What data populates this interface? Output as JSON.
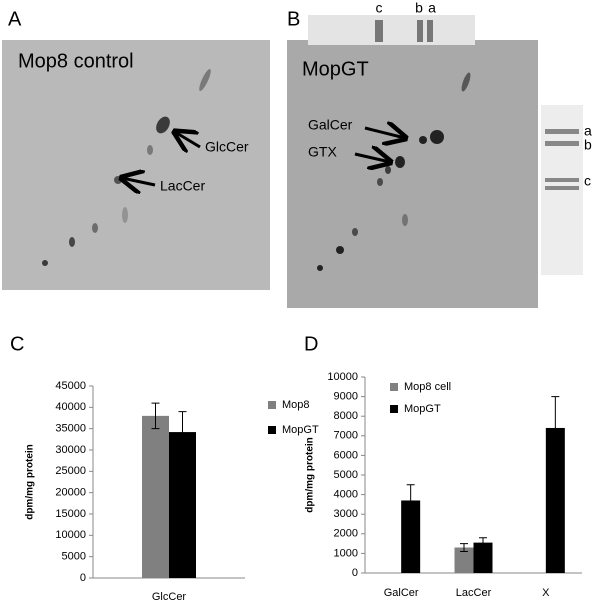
{
  "panels": {
    "a": {
      "label": "A",
      "title": "Mop8 control",
      "annotations": [
        "GlcCer",
        "LacCer"
      ]
    },
    "b": {
      "label": "B",
      "title": "MopGT",
      "annotations": [
        "GalCer",
        "GTX"
      ],
      "strip_top": [
        "c",
        "b",
        "a"
      ],
      "strip_right": [
        "a",
        "b",
        "c"
      ]
    },
    "c": {
      "label": "C"
    },
    "d": {
      "label": "D"
    }
  },
  "chart_data": [
    {
      "type": "bar",
      "ylabel": "dpm/mg protein",
      "categories": [
        "GlcCer"
      ],
      "series": [
        {
          "name": "Mop8",
          "color": "#808080",
          "values": [
            38000
          ],
          "errors": [
            3000
          ]
        },
        {
          "name": "MopGT",
          "color": "#000000",
          "values": [
            34200
          ],
          "errors": [
            4800
          ]
        }
      ],
      "ylim": [
        0,
        45000
      ],
      "yticks": [
        0,
        5000,
        10000,
        15000,
        20000,
        25000,
        30000,
        35000,
        40000,
        45000
      ]
    },
    {
      "type": "bar",
      "ylabel": "dpm/mg protein",
      "categories": [
        "GalCer",
        "LacCer",
        "X"
      ],
      "series": [
        {
          "name": "Mop8 cell",
          "color": "#808080",
          "values": [
            null,
            1300,
            null
          ],
          "errors": [
            null,
            200,
            null
          ]
        },
        {
          "name": "MopGT",
          "color": "#000000",
          "values": [
            3700,
            1550,
            7400
          ],
          "errors": [
            800,
            250,
            1600
          ]
        }
      ],
      "ylim": [
        0,
        10000
      ],
      "yticks": [
        0,
        1000,
        2000,
        3000,
        4000,
        5000,
        6000,
        7000,
        8000,
        9000,
        10000
      ]
    }
  ]
}
